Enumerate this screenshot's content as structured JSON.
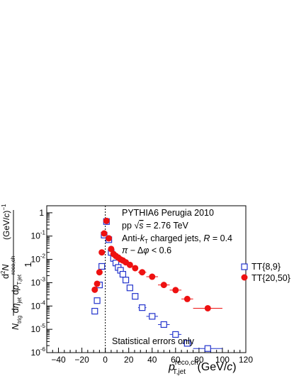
{
  "chart_data": {
    "type": "scatter",
    "xlim": [
      -50,
      120
    ],
    "ylim": [
      1e-06,
      2
    ],
    "y_scale": "log",
    "grid": false,
    "x_ticks": [
      -40,
      -20,
      0,
      20,
      40,
      60,
      80,
      100,
      120
    ],
    "x_tick_labels": [
      "−40",
      "−20",
      "0",
      "20",
      "40",
      "60",
      "80",
      "100",
      "120"
    ],
    "y_ticks": [
      {
        "value": 1e-06,
        "base": "10",
        "exp": "-6"
      },
      {
        "value": 1e-05,
        "base": "10",
        "exp": "-5"
      },
      {
        "value": 0.0001,
        "base": "10",
        "exp": "-4"
      },
      {
        "value": 0.001,
        "base": "10",
        "exp": "-3"
      },
      {
        "value": 0.01,
        "base": "10",
        "exp": "-2"
      },
      {
        "value": 0.1,
        "base": "10",
        "exp": "-1"
      },
      {
        "value": 1,
        "base": "1",
        "exp": ""
      }
    ],
    "x_zero_line": {
      "x": 0,
      "style": "dotted"
    },
    "legend_placement": "right",
    "annotations": [
      "PYTHIA6 Perugia 2010",
      "pp √s = 2.76 TeV",
      "Anti-kT charged jets, R = 0.4",
      "π − Δφ < 0.6",
      "Statistical errors only"
    ],
    "series": [
      {
        "name": "TT{8,9}",
        "marker": "open-square",
        "color": "#2233cc",
        "points": [
          {
            "x": -9,
            "y": 6e-05,
            "xerr": 1
          },
          {
            "x": -7,
            "y": 0.00017,
            "xerr": 1
          },
          {
            "x": -5,
            "y": 0.0008,
            "xerr": 1
          },
          {
            "x": -3,
            "y": 0.005,
            "xerr": 1
          },
          {
            "x": -1,
            "y": 0.11,
            "xerr": 1
          },
          {
            "x": 1,
            "y": 0.42,
            "xerr": 1
          },
          {
            "x": 3,
            "y": 0.07,
            "xerr": 1
          },
          {
            "x": 5,
            "y": 0.02,
            "xerr": 1
          },
          {
            "x": 7,
            "y": 0.011,
            "xerr": 1
          },
          {
            "x": 9,
            "y": 0.007,
            "xerr": 1
          },
          {
            "x": 11,
            "y": 0.0045,
            "xerr": 1
          },
          {
            "x": 13,
            "y": 0.0034,
            "xerr": 1
          },
          {
            "x": 15,
            "y": 0.0023,
            "xerr": 1
          },
          {
            "x": 17.5,
            "y": 0.0013,
            "xerr": 1.5
          },
          {
            "x": 21,
            "y": 0.0006,
            "xerr": 2
          },
          {
            "x": 25.5,
            "y": 0.00026,
            "xerr": 2.5
          },
          {
            "x": 31.5,
            "y": 8.5e-05,
            "xerr": 3.5
          },
          {
            "x": 40,
            "y": 3.6e-05,
            "xerr": 5
          },
          {
            "x": 50,
            "y": 1.6e-05,
            "xerr": 5
          },
          {
            "x": 60,
            "y": 6e-06,
            "xerr": 5
          },
          {
            "x": 70,
            "y": 2.5e-06,
            "xerr": 5
          },
          {
            "x": 87.5,
            "y": 1.5e-06,
            "xerr": 12.5
          }
        ]
      },
      {
        "name": "TT{20,50}",
        "marker": "filled-circle",
        "color": "#ee1111",
        "points": [
          {
            "x": -9,
            "y": 0.0005,
            "xerr": 1
          },
          {
            "x": -7,
            "y": 0.0009,
            "xerr": 1
          },
          {
            "x": -5,
            "y": 0.0028,
            "xerr": 1
          },
          {
            "x": -3,
            "y": 0.02,
            "xerr": 1
          },
          {
            "x": -1,
            "y": 0.13,
            "xerr": 1
          },
          {
            "x": 1,
            "y": 0.45,
            "xerr": 1
          },
          {
            "x": 3,
            "y": 0.08,
            "xerr": 1
          },
          {
            "x": 5,
            "y": 0.028,
            "xerr": 1
          },
          {
            "x": 7,
            "y": 0.017,
            "xerr": 1
          },
          {
            "x": 9,
            "y": 0.014,
            "xerr": 1
          },
          {
            "x": 11,
            "y": 0.012,
            "xerr": 1
          },
          {
            "x": 13,
            "y": 0.01,
            "xerr": 1
          },
          {
            "x": 15,
            "y": 0.009,
            "xerr": 1
          },
          {
            "x": 17.5,
            "y": 0.0075,
            "xerr": 1.5
          },
          {
            "x": 21,
            "y": 0.0058,
            "xerr": 2
          },
          {
            "x": 25.5,
            "y": 0.0042,
            "xerr": 2.5
          },
          {
            "x": 31.5,
            "y": 0.0028,
            "xerr": 3.5
          },
          {
            "x": 40,
            "y": 0.0018,
            "xerr": 5
          },
          {
            "x": 50,
            "y": 0.0008,
            "xerr": 5
          },
          {
            "x": 60,
            "y": 0.00048,
            "xerr": 5
          },
          {
            "x": 70,
            "y": 0.0002,
            "xerr": 5
          },
          {
            "x": 87.5,
            "y": 8e-05,
            "xerr": 12.5
          }
        ]
      }
    ]
  }
}
